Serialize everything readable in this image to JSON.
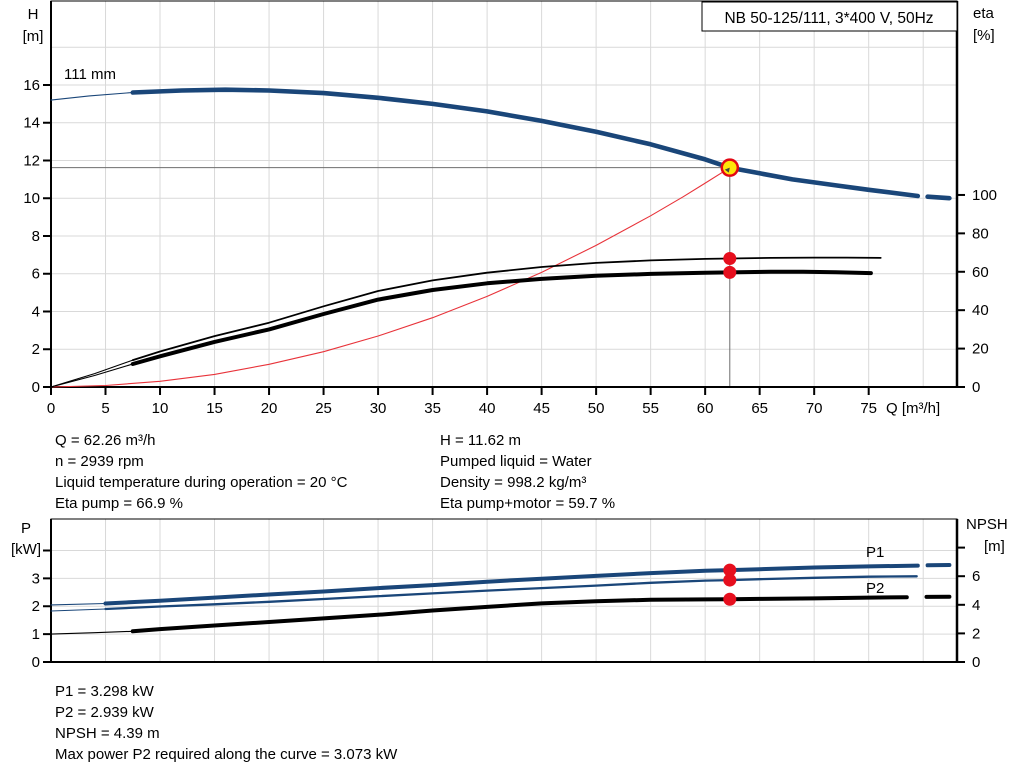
{
  "title": "NB 50-125/111, 3*400 V, 50Hz",
  "labels": {
    "h_axis": "H",
    "h_unit": "[m]",
    "eta_axis": "eta",
    "eta_unit": "[%]",
    "q_axis": "Q [m³/h]",
    "p_axis": "P",
    "p_unit": "[kW]",
    "npsh_axis": "NPSH",
    "npsh_unit": "[m]",
    "impeller": "111 mm",
    "p1": "P1",
    "p2": "P2"
  },
  "colors": {
    "navy": "#1a4679",
    "black": "#000000",
    "red_curve": "#e8333a",
    "red_dot": "#e60f1e",
    "duty_fill": "#ffe50a",
    "duty_ring": "#e30613",
    "label_blue": "#2d66ad",
    "grid": "#d9d9d9",
    "crosshair": "#6e6e6e"
  },
  "info": {
    "top_left": [
      "Q = 62.26 m³/h",
      "n = 2939 rpm",
      "Liquid temperature during operation = 20 °C",
      "Eta pump = 66.9 %"
    ],
    "top_right": [
      "H = 11.62 m",
      "Pumped liquid = Water",
      "Density = 998.2 kg/m³",
      "Eta pump+motor = 59.7 %"
    ],
    "bottom": [
      "P1 = 3.298 kW",
      "P2 = 2.939 kW",
      "NPSH = 4.39 m",
      "Max power P2 required along the curve = 3.073 kW"
    ]
  },
  "chart_data": [
    {
      "id": "head-efficiency-chart",
      "type": "line",
      "title": "NB 50-125/111, 3*400 V, 50Hz",
      "xlabel": "Q [m³/h]",
      "ylabel_left": "H [m]",
      "ylabel_right": "eta [%]",
      "xlim": [
        0,
        83.1
      ],
      "x_ticks": [
        0,
        5,
        10,
        15,
        20,
        25,
        30,
        35,
        40,
        45,
        50,
        55,
        60,
        65,
        70,
        75
      ],
      "x_grid": [
        5,
        10,
        15,
        20,
        25,
        30,
        35,
        40,
        45,
        50,
        55,
        60,
        65,
        70,
        75,
        80
      ],
      "ylim_left": [
        0,
        20.45
      ],
      "left_ticks": [
        0,
        2,
        4,
        6,
        8,
        10,
        12,
        14,
        16
      ],
      "left_grid": [
        2,
        4,
        6,
        8,
        10,
        12,
        14,
        16,
        18
      ],
      "ylim_right": [
        0,
        201
      ],
      "right_ticks": [
        0,
        20,
        40,
        60,
        80,
        100
      ],
      "duty_point": {
        "q": 62.26,
        "h": 11.62
      },
      "crosshair": {
        "q": 62.26,
        "h": 11.62
      },
      "series": [
        {
          "name": "head-curve-lead",
          "axis": "left",
          "color": "navy",
          "weight": "hair",
          "points": [
            [
              0,
              15.2
            ],
            [
              3.5,
              15.42
            ],
            [
              7.5,
              15.6
            ]
          ]
        },
        {
          "name": "head-curve-111mm",
          "axis": "left",
          "color": "navy",
          "weight": "heavy",
          "points": [
            [
              7.5,
              15.6
            ],
            [
              12,
              15.71
            ],
            [
              16,
              15.75
            ],
            [
              20,
              15.71
            ],
            [
              25,
              15.57
            ],
            [
              30,
              15.32
            ],
            [
              35,
              15.0
            ],
            [
              40,
              14.6
            ],
            [
              45,
              14.1
            ],
            [
              50,
              13.52
            ],
            [
              55,
              12.86
            ],
            [
              60,
              12.06
            ],
            [
              62.26,
              11.62
            ],
            [
              65,
              11.32
            ],
            [
              68,
              11.0
            ],
            [
              72,
              10.68
            ],
            [
              75,
              10.45
            ],
            [
              79.5,
              10.12
            ]
          ]
        },
        {
          "name": "head-curve-tail",
          "axis": "left",
          "color": "navy",
          "weight": "heavy",
          "points": [
            [
              80.4,
              10.08
            ],
            [
              82.4,
              10.0
            ]
          ]
        },
        {
          "name": "system-curve",
          "axis": "left",
          "color": "red_curve",
          "weight": "hair",
          "points": [
            [
              0,
              0
            ],
            [
              5,
              0.08
            ],
            [
              10,
              0.3
            ],
            [
              15,
              0.67
            ],
            [
              20,
              1.2
            ],
            [
              25,
              1.87
            ],
            [
              30,
              2.7
            ],
            [
              35,
              3.67
            ],
            [
              40,
              4.8
            ],
            [
              45,
              6.07
            ],
            [
              50,
              7.5
            ],
            [
              55,
              9.07
            ],
            [
              58,
              10.08
            ],
            [
              60,
              10.8
            ],
            [
              62.26,
              11.62
            ]
          ]
        },
        {
          "name": "eta-pump-lead",
          "axis": "right",
          "color": "black",
          "weight": "hair",
          "points": [
            [
              0,
              0
            ],
            [
              4,
              7
            ],
            [
              7.5,
              14
            ]
          ]
        },
        {
          "name": "eta-pump-curve",
          "axis": "right",
          "color": "black",
          "weight": "thin",
          "points": [
            [
              7.5,
              14
            ],
            [
              10,
              18.5
            ],
            [
              15,
              26.5
            ],
            [
              20,
              33.5
            ],
            [
              25,
              42
            ],
            [
              30,
              50
            ],
            [
              35,
              55.5
            ],
            [
              40,
              59.5
            ],
            [
              45,
              62.5
            ],
            [
              50,
              64.6
            ],
            [
              55,
              65.9
            ],
            [
              60,
              66.7
            ],
            [
              62.26,
              66.9
            ],
            [
              66,
              67.2
            ],
            [
              70,
              67.4
            ],
            [
              73,
              67.4
            ],
            [
              76.1,
              67.2
            ]
          ]
        },
        {
          "name": "eta-pump-motor-lead",
          "axis": "right",
          "color": "black",
          "weight": "hair",
          "points": [
            [
              0,
              0
            ],
            [
              4,
              6
            ],
            [
              7.5,
              12
            ]
          ]
        },
        {
          "name": "eta-pump-motor-curve",
          "axis": "right",
          "color": "black",
          "weight": "thick",
          "points": [
            [
              7.5,
              12
            ],
            [
              10,
              16
            ],
            [
              15,
              23.5
            ],
            [
              20,
              30
            ],
            [
              25,
              38
            ],
            [
              30,
              45.5
            ],
            [
              35,
              50.5
            ],
            [
              40,
              54
            ],
            [
              45,
              56.3
            ],
            [
              50,
              57.9
            ],
            [
              55,
              58.9
            ],
            [
              60,
              59.5
            ],
            [
              62.26,
              59.7
            ],
            [
              66,
              60
            ],
            [
              69,
              60
            ],
            [
              72,
              59.8
            ],
            [
              75.2,
              59.3
            ]
          ]
        }
      ],
      "markers": [
        {
          "type": "duty",
          "name": "duty-point",
          "axis": "left",
          "q": 62.26,
          "value": 11.62
        },
        {
          "type": "dot",
          "name": "eta-pump-point",
          "axis": "right",
          "q": 62.26,
          "value": 66.9
        },
        {
          "type": "dot",
          "name": "eta-pump-motor-point",
          "axis": "right",
          "q": 62.26,
          "value": 59.7
        }
      ]
    },
    {
      "id": "power-npsh-chart",
      "type": "line",
      "xlabel": "",
      "ylabel_left": "P [kW]",
      "ylabel_right": "NPSH [m]",
      "xlim": [
        0,
        83.1
      ],
      "x_ticks": [],
      "x_grid": [
        5,
        10,
        15,
        20,
        25,
        30,
        35,
        40,
        45,
        50,
        55,
        60,
        65,
        70,
        75,
        80
      ],
      "ylim_left": [
        0,
        5.13
      ],
      "left_ticks": [
        0,
        1,
        2,
        3
      ],
      "left_ticks_unlabeled": [
        4
      ],
      "left_grid": [
        1,
        2,
        3,
        4
      ],
      "ylim_right": [
        0,
        10.0
      ],
      "right_ticks": [
        0,
        2,
        4,
        6
      ],
      "right_ticks_unlabeled": [
        8
      ],
      "series": [
        {
          "name": "p1-lead",
          "axis": "left",
          "color": "navy",
          "weight": "hair",
          "points": [
            [
              0,
              2.05
            ],
            [
              5,
              2.1
            ]
          ]
        },
        {
          "name": "p1-curve",
          "axis": "left",
          "color": "navy",
          "weight": "thick",
          "points": [
            [
              5,
              2.1
            ],
            [
              10,
              2.2
            ],
            [
              15,
              2.31
            ],
            [
              20,
              2.42
            ],
            [
              25,
              2.53
            ],
            [
              30,
              2.65
            ],
            [
              35,
              2.76
            ],
            [
              40,
              2.88
            ],
            [
              45,
              2.99
            ],
            [
              50,
              3.09
            ],
            [
              55,
              3.19
            ],
            [
              60,
              3.27
            ],
            [
              62.26,
              3.298
            ],
            [
              65,
              3.33
            ],
            [
              70,
              3.39
            ],
            [
              75,
              3.43
            ],
            [
              79.5,
              3.46
            ]
          ]
        },
        {
          "name": "p1-curve-tail",
          "axis": "left",
          "color": "navy",
          "weight": "thick",
          "points": [
            [
              80.4,
              3.47
            ],
            [
              82.4,
              3.48
            ]
          ]
        },
        {
          "name": "p2-lead",
          "axis": "left",
          "color": "navy",
          "weight": "hair",
          "points": [
            [
              0,
              1.83
            ],
            [
              5,
              1.9
            ]
          ]
        },
        {
          "name": "p2-curve",
          "axis": "left",
          "color": "navy",
          "weight": "medium",
          "points": [
            [
              5,
              1.9
            ],
            [
              10,
              1.99
            ],
            [
              15,
              2.07
            ],
            [
              20,
              2.16
            ],
            [
              25,
              2.26
            ],
            [
              30,
              2.36
            ],
            [
              35,
              2.46
            ],
            [
              40,
              2.56
            ],
            [
              45,
              2.65
            ],
            [
              50,
              2.74
            ],
            [
              55,
              2.84
            ],
            [
              60,
              2.92
            ],
            [
              62.26,
              2.939
            ],
            [
              65,
              2.97
            ],
            [
              70,
              3.02
            ],
            [
              75,
              3.06
            ],
            [
              79.4,
              3.073
            ]
          ]
        },
        {
          "name": "npsh-lead",
          "axis": "right",
          "color": "black",
          "weight": "hair",
          "points": [
            [
              0,
              1.95
            ],
            [
              4,
              2.05
            ],
            [
              7.5,
              2.15
            ]
          ]
        },
        {
          "name": "npsh-curve",
          "axis": "right",
          "color": "black",
          "weight": "thick",
          "points": [
            [
              7.5,
              2.15
            ],
            [
              10,
              2.3
            ],
            [
              15,
              2.55
            ],
            [
              20,
              2.8
            ],
            [
              25,
              3.05
            ],
            [
              30,
              3.3
            ],
            [
              35,
              3.6
            ],
            [
              40,
              3.85
            ],
            [
              45,
              4.1
            ],
            [
              50,
              4.25
            ],
            [
              55,
              4.35
            ],
            [
              60,
              4.38
            ],
            [
              62.26,
              4.39
            ],
            [
              65,
              4.41
            ],
            [
              70,
              4.45
            ],
            [
              75,
              4.5
            ],
            [
              78.5,
              4.53
            ]
          ]
        },
        {
          "name": "npsh-curve-tail",
          "axis": "right",
          "color": "black",
          "weight": "thick",
          "points": [
            [
              80.3,
              4.55
            ],
            [
              82.4,
              4.56
            ]
          ]
        }
      ],
      "markers": [
        {
          "type": "dot",
          "name": "p1-point",
          "axis": "left",
          "q": 62.26,
          "value": 3.298
        },
        {
          "type": "dot",
          "name": "p2-point",
          "axis": "left",
          "q": 62.26,
          "value": 2.939
        },
        {
          "type": "dot",
          "name": "npsh-point",
          "axis": "right",
          "q": 62.26,
          "value": 4.39
        }
      ]
    }
  ]
}
